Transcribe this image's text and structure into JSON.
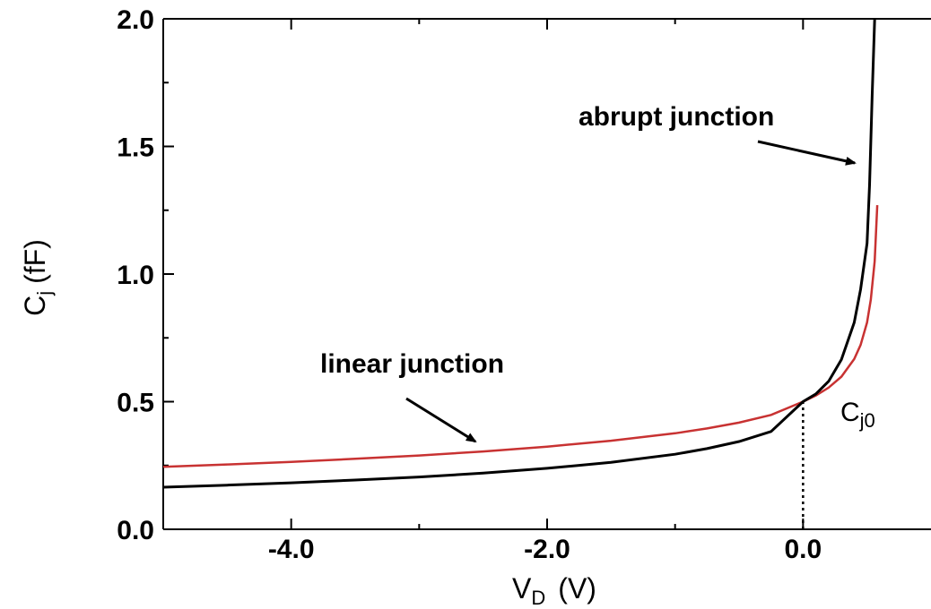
{
  "chart_data": {
    "type": "line",
    "xlabel": "V",
    "xlabel_sub": "D",
    "xlabel_unit": "(V)",
    "ylabel": "C",
    "ylabel_sub": "j",
    "ylabel_unit": "(fF)",
    "xlim": [
      -5.0,
      1.0
    ],
    "ylim": [
      0.0,
      2.0
    ],
    "x_ticks": [
      -4.0,
      -2.0,
      0.0
    ],
    "x_tick_labels": [
      "-4.0",
      "-2.0",
      "0.0"
    ],
    "y_ticks": [
      0.0,
      0.5,
      1.0,
      1.5,
      2.0
    ],
    "y_tick_labels": [
      "0.0",
      "0.5",
      "1.0",
      "1.5",
      "2.0"
    ],
    "grid": false,
    "series": [
      {
        "key": "abrupt",
        "color": "#000000",
        "x": [
          -5.0,
          -4.5,
          -4.0,
          -3.5,
          -3.0,
          -2.5,
          -2.0,
          -1.5,
          -1.0,
          -0.75,
          -0.5,
          -0.25,
          0.0,
          0.1,
          0.2,
          0.3,
          0.4,
          0.45,
          0.5,
          0.52,
          0.54,
          0.56
        ],
        "y": [
          0.165,
          0.173,
          0.182,
          0.193,
          0.205,
          0.22,
          0.239,
          0.262,
          0.294,
          0.316,
          0.344,
          0.383,
          0.5,
          0.53,
          0.58,
          0.665,
          0.81,
          0.94,
          1.12,
          1.35,
          1.7,
          2.0
        ]
      },
      {
        "key": "linear",
        "color": "#c83232",
        "x": [
          -5.0,
          -4.5,
          -4.0,
          -3.5,
          -3.0,
          -2.5,
          -2.0,
          -1.5,
          -1.0,
          -0.75,
          -0.5,
          -0.25,
          0.0,
          0.1,
          0.2,
          0.3,
          0.4,
          0.45,
          0.5,
          0.53,
          0.56,
          0.58
        ],
        "y": [
          0.245,
          0.254,
          0.264,
          0.276,
          0.289,
          0.305,
          0.324,
          0.347,
          0.376,
          0.395,
          0.418,
          0.448,
          0.5,
          0.524,
          0.555,
          0.598,
          0.667,
          0.722,
          0.81,
          0.9,
          1.05,
          1.27
        ]
      }
    ],
    "annotations": {
      "abrupt_label": "abrupt junction",
      "linear_label": "linear junction",
      "cj0_main": "C",
      "cj0_sub": "j0"
    },
    "marker_line": {
      "x": 0.0,
      "y_from": 0.0,
      "y_to": 0.5,
      "style": "dotted"
    }
  }
}
